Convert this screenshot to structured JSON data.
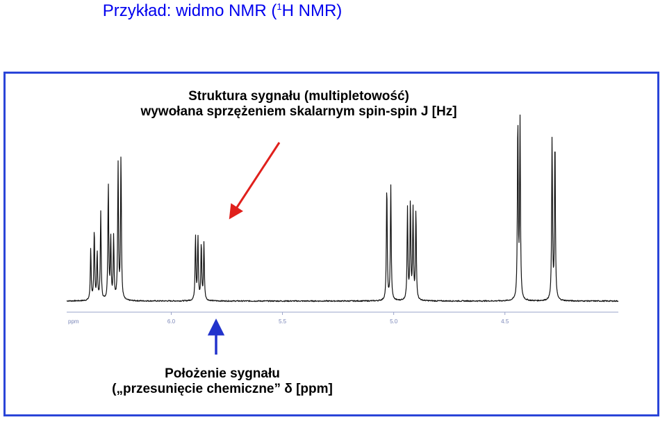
{
  "page_title": {
    "prefix": "Przykład: widmo NMR (",
    "superscript": "1",
    "suffix": "H NMR)",
    "color": "#0000ee"
  },
  "annotation_top": {
    "line1": "Struktura sygnału (multipletowość)",
    "line2": "wywołana sprzężeniem skalarnym spin-spin J [Hz]",
    "arrow_color": "#e0201c"
  },
  "annotation_bottom": {
    "line1": "Położenie sygnału",
    "line2": "(„przesunięcie chemiczne” δ [ppm]",
    "arrow_color": "#2233cc"
  },
  "frame_color": "#2a45d8",
  "chart_data": {
    "type": "line",
    "x_axis": {
      "unit_label": "ppm",
      "ticks": [
        "6.0",
        "5.5",
        "5.0",
        "4.5"
      ],
      "tick_values": [
        6.0,
        5.5,
        5.0,
        4.5
      ],
      "reversed": true,
      "xlim": [
        6.47,
        3.99
      ]
    },
    "y_axis": {
      "visible": false,
      "ylim": [
        0,
        1.0
      ]
    },
    "grid": false,
    "peaks": [
      {
        "ppm": 6.362,
        "height": 0.27
      },
      {
        "ppm": 6.346,
        "height": 0.37
      },
      {
        "ppm": 6.333,
        "height": 0.25
      },
      {
        "ppm": 6.317,
        "height": 0.46
      },
      {
        "ppm": 6.283,
        "height": 0.61
      },
      {
        "ppm": 6.272,
        "height": 0.32
      },
      {
        "ppm": 6.259,
        "height": 0.33
      },
      {
        "ppm": 6.239,
        "height": 0.71
      },
      {
        "ppm": 6.226,
        "height": 0.75
      },
      {
        "ppm": 5.891,
        "height": 0.34
      },
      {
        "ppm": 5.88,
        "height": 0.33
      },
      {
        "ppm": 5.865,
        "height": 0.3
      },
      {
        "ppm": 5.853,
        "height": 0.3
      },
      {
        "ppm": 5.031,
        "height": 0.61
      },
      {
        "ppm": 5.013,
        "height": 0.6
      },
      {
        "ppm": 4.938,
        "height": 0.48
      },
      {
        "ppm": 4.925,
        "height": 0.51
      },
      {
        "ppm": 4.913,
        "height": 0.47
      },
      {
        "ppm": 4.9,
        "height": 0.47
      },
      {
        "ppm": 4.442,
        "height": 0.95
      },
      {
        "ppm": 4.432,
        "height": 0.93
      },
      {
        "ppm": 4.288,
        "height": 0.85
      },
      {
        "ppm": 4.275,
        "height": 0.85
      }
    ]
  }
}
